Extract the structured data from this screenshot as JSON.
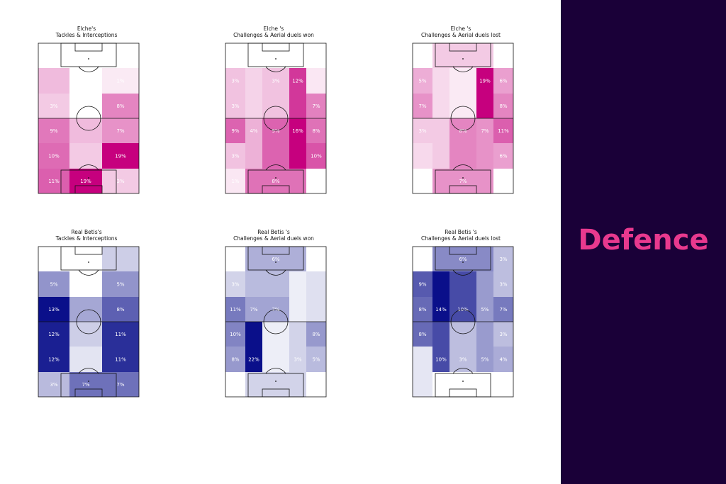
{
  "side_title": "Defence",
  "colors": {
    "elche": "#c6007e",
    "betis": "#0a0f8a",
    "right_bg": "#1a0038",
    "title": "#e8398e"
  },
  "chart_data": [
    {
      "type": "heatmap",
      "team": "Elche",
      "title": [
        "Elche's",
        "Tackles & Interceptions"
      ],
      "color": "#c6007e",
      "columns": 3,
      "rows": 6,
      "cells": [
        {
          "col": 0,
          "row": 0,
          "value": 0,
          "label": "0%"
        },
        {
          "col": 1,
          "row": 0,
          "value": 0,
          "label": "0%"
        },
        {
          "col": 2,
          "row": 0,
          "value": 0,
          "label": "0%"
        },
        {
          "col": 0,
          "row": 1,
          "value": 4,
          "label": ""
        },
        {
          "col": 1,
          "row": 1,
          "value": 0,
          "label": "0%"
        },
        {
          "col": 2,
          "row": 1,
          "value": 1,
          "label": "1%"
        },
        {
          "col": 0,
          "row": 2,
          "value": 3,
          "label": "3%"
        },
        {
          "col": 1,
          "row": 2,
          "value": 0,
          "label": ""
        },
        {
          "col": 2,
          "row": 2,
          "value": 8,
          "label": "8%"
        },
        {
          "col": 0,
          "row": 3,
          "value": 9,
          "label": "9%"
        },
        {
          "col": 1,
          "row": 3,
          "value": 4,
          "label": ""
        },
        {
          "col": 2,
          "row": 3,
          "value": 7,
          "label": "7%"
        },
        {
          "col": 0,
          "row": 4,
          "value": 10,
          "label": "10%"
        },
        {
          "col": 1,
          "row": 4,
          "value": 3,
          "label": ""
        },
        {
          "col": 2,
          "row": 4,
          "value": 19,
          "label": "19%"
        },
        {
          "col": 0,
          "row": 5,
          "value": 11,
          "label": "11%"
        },
        {
          "col": 1,
          "row": 5,
          "value": 19,
          "label": "19%"
        },
        {
          "col": 2,
          "row": 5,
          "value": 3,
          "label": "3%"
        }
      ]
    },
    {
      "type": "heatmap",
      "team": "Elche",
      "title": [
        "Elche 's",
        "Challenges & Aerial duels won"
      ],
      "color": "#c6007e",
      "columns": 5,
      "rows": 6,
      "cells": [
        {
          "col": 0,
          "row": 0,
          "value": 0,
          "label": "0%"
        },
        {
          "col": 1,
          "row": 0,
          "value": 0,
          "label": ""
        },
        {
          "col": 2,
          "row": 0,
          "value": 0,
          "label": ""
        },
        {
          "col": 3,
          "row": 0,
          "value": 0,
          "label": ""
        },
        {
          "col": 4,
          "row": 0,
          "value": 0,
          "label": "0%"
        },
        {
          "col": 0,
          "row": 1,
          "value": 3,
          "label": "3%"
        },
        {
          "col": 1,
          "row": 1,
          "value": 2,
          "label": ""
        },
        {
          "col": 2,
          "row": 1,
          "value": 3,
          "label": "3%"
        },
        {
          "col": 3,
          "row": 1,
          "value": 12,
          "label": "12%"
        },
        {
          "col": 4,
          "row": 1,
          "value": 1,
          "label": ""
        },
        {
          "col": 0,
          "row": 2,
          "value": 3,
          "label": "3%"
        },
        {
          "col": 1,
          "row": 2,
          "value": 2,
          "label": ""
        },
        {
          "col": 2,
          "row": 2,
          "value": 3,
          "label": ""
        },
        {
          "col": 3,
          "row": 2,
          "value": 12,
          "label": ""
        },
        {
          "col": 4,
          "row": 2,
          "value": 7,
          "label": "7%"
        },
        {
          "col": 0,
          "row": 3,
          "value": 9,
          "label": "9%"
        },
        {
          "col": 1,
          "row": 3,
          "value": 4,
          "label": "4%"
        },
        {
          "col": 2,
          "row": 3,
          "value": 9,
          "label": "9%"
        },
        {
          "col": 3,
          "row": 3,
          "value": 16,
          "label": "16%"
        },
        {
          "col": 4,
          "row": 3,
          "value": 8,
          "label": "8%"
        },
        {
          "col": 0,
          "row": 4,
          "value": 3,
          "label": "3%"
        },
        {
          "col": 1,
          "row": 4,
          "value": 4,
          "label": ""
        },
        {
          "col": 2,
          "row": 4,
          "value": 9,
          "label": ""
        },
        {
          "col": 3,
          "row": 4,
          "value": 16,
          "label": ""
        },
        {
          "col": 4,
          "row": 4,
          "value": 10,
          "label": "10%"
        },
        {
          "col": 0,
          "row": 5,
          "value": 1,
          "label": "1%"
        },
        {
          "col": 1,
          "row": 5,
          "value": 8,
          "label": ""
        },
        {
          "col": 2,
          "row": 5,
          "value": 8,
          "label": "8%"
        },
        {
          "col": 3,
          "row": 5,
          "value": 8,
          "label": ""
        },
        {
          "col": 4,
          "row": 5,
          "value": 0,
          "label": "0%"
        }
      ]
    },
    {
      "type": "heatmap",
      "team": "Elche",
      "title": [
        "Elche 's",
        "Challenges & Aerial duels lost"
      ],
      "color": "#c6007e",
      "columns": 5,
      "rows": 6,
      "cells": [
        {
          "col": 0,
          "row": 0,
          "value": 0,
          "label": "0%"
        },
        {
          "col": 1,
          "row": 0,
          "value": 3,
          "label": ""
        },
        {
          "col": 2,
          "row": 0,
          "value": 3,
          "label": ""
        },
        {
          "col": 3,
          "row": 0,
          "value": 3,
          "label": ""
        },
        {
          "col": 4,
          "row": 0,
          "value": 0,
          "label": "0%"
        },
        {
          "col": 0,
          "row": 1,
          "value": 5,
          "label": "5%"
        },
        {
          "col": 1,
          "row": 1,
          "value": 2,
          "label": ""
        },
        {
          "col": 2,
          "row": 1,
          "value": 1,
          "label": ""
        },
        {
          "col": 3,
          "row": 1,
          "value": 19,
          "label": "19%"
        },
        {
          "col": 4,
          "row": 1,
          "value": 6,
          "label": "6%"
        },
        {
          "col": 0,
          "row": 2,
          "value": 7,
          "label": "7%"
        },
        {
          "col": 1,
          "row": 2,
          "value": 2,
          "label": ""
        },
        {
          "col": 2,
          "row": 2,
          "value": 1,
          "label": ""
        },
        {
          "col": 3,
          "row": 2,
          "value": 19,
          "label": ""
        },
        {
          "col": 4,
          "row": 2,
          "value": 8,
          "label": "8%"
        },
        {
          "col": 0,
          "row": 3,
          "value": 3,
          "label": "3%"
        },
        {
          "col": 1,
          "row": 3,
          "value": 3,
          "label": ""
        },
        {
          "col": 2,
          "row": 3,
          "value": 8,
          "label": "8%"
        },
        {
          "col": 3,
          "row": 3,
          "value": 7,
          "label": "7%"
        },
        {
          "col": 4,
          "row": 3,
          "value": 11,
          "label": "11%"
        },
        {
          "col": 0,
          "row": 4,
          "value": 2,
          "label": ""
        },
        {
          "col": 1,
          "row": 4,
          "value": 3,
          "label": ""
        },
        {
          "col": 2,
          "row": 4,
          "value": 8,
          "label": ""
        },
        {
          "col": 3,
          "row": 4,
          "value": 7,
          "label": ""
        },
        {
          "col": 4,
          "row": 4,
          "value": 6,
          "label": "6%"
        },
        {
          "col": 0,
          "row": 5,
          "value": 0,
          "label": ""
        },
        {
          "col": 1,
          "row": 5,
          "value": 7,
          "label": ""
        },
        {
          "col": 2,
          "row": 5,
          "value": 7,
          "label": "7%"
        },
        {
          "col": 3,
          "row": 5,
          "value": 7,
          "label": ""
        },
        {
          "col": 4,
          "row": 5,
          "value": 0,
          "label": "0%"
        }
      ]
    },
    {
      "type": "heatmap",
      "team": "Real Betis",
      "title": [
        "Real Betis's",
        "Tackles & Interceptions"
      ],
      "color": "#0a0f8a",
      "columns": 3,
      "rows": 6,
      "cells": [
        {
          "col": 0,
          "row": 0,
          "value": 0,
          "label": "0%"
        },
        {
          "col": 1,
          "row": 0,
          "value": 0,
          "label": "0%"
        },
        {
          "col": 2,
          "row": 0,
          "value": 2,
          "label": ""
        },
        {
          "col": 0,
          "row": 1,
          "value": 5,
          "label": "5%"
        },
        {
          "col": 1,
          "row": 1,
          "value": 0,
          "label": "0%"
        },
        {
          "col": 2,
          "row": 1,
          "value": 5,
          "label": "5%"
        },
        {
          "col": 0,
          "row": 2,
          "value": 13,
          "label": "13%"
        },
        {
          "col": 1,
          "row": 2,
          "value": 4,
          "label": ""
        },
        {
          "col": 2,
          "row": 2,
          "value": 8,
          "label": "8%"
        },
        {
          "col": 0,
          "row": 3,
          "value": 12,
          "label": "12%"
        },
        {
          "col": 1,
          "row": 3,
          "value": 2,
          "label": ""
        },
        {
          "col": 2,
          "row": 3,
          "value": 11,
          "label": "11%"
        },
        {
          "col": 0,
          "row": 4,
          "value": 12,
          "label": "12%"
        },
        {
          "col": 1,
          "row": 4,
          "value": 1,
          "label": ""
        },
        {
          "col": 2,
          "row": 4,
          "value": 11,
          "label": "11%"
        },
        {
          "col": 0,
          "row": 5,
          "value": 3,
          "label": "3%"
        },
        {
          "col": 1,
          "row": 5,
          "value": 7,
          "label": "7%"
        },
        {
          "col": 2,
          "row": 5,
          "value": 7,
          "label": "7%"
        }
      ]
    },
    {
      "type": "heatmap",
      "team": "Real Betis",
      "title": [
        "Real Betis 's",
        "Challenges & Aerial duels won"
      ],
      "color": "#0a0f8a",
      "columns": 5,
      "rows": 6,
      "cells": [
        {
          "col": 0,
          "row": 0,
          "value": 0,
          "label": "0%"
        },
        {
          "col": 1,
          "row": 0,
          "value": 6,
          "label": ""
        },
        {
          "col": 2,
          "row": 0,
          "value": 6,
          "label": "6%"
        },
        {
          "col": 3,
          "row": 0,
          "value": 6,
          "label": ""
        },
        {
          "col": 4,
          "row": 0,
          "value": 0,
          "label": "0%"
        },
        {
          "col": 0,
          "row": 1,
          "value": 3,
          "label": "3%"
        },
        {
          "col": 1,
          "row": 1,
          "value": 5,
          "label": ""
        },
        {
          "col": 2,
          "row": 1,
          "value": 5,
          "label": ""
        },
        {
          "col": 3,
          "row": 1,
          "value": 1,
          "label": ""
        },
        {
          "col": 4,
          "row": 1,
          "value": 2,
          "label": ""
        },
        {
          "col": 0,
          "row": 2,
          "value": 11,
          "label": "11%"
        },
        {
          "col": 1,
          "row": 2,
          "value": 7,
          "label": "7%"
        },
        {
          "col": 2,
          "row": 2,
          "value": 7,
          "label": "7%"
        },
        {
          "col": 3,
          "row": 2,
          "value": 1,
          "label": ""
        },
        {
          "col": 4,
          "row": 2,
          "value": 2,
          "label": ""
        },
        {
          "col": 0,
          "row": 3,
          "value": 10,
          "label": "10%"
        },
        {
          "col": 1,
          "row": 3,
          "value": 22,
          "label": ""
        },
        {
          "col": 2,
          "row": 3,
          "value": 1,
          "label": ""
        },
        {
          "col": 3,
          "row": 3,
          "value": 3,
          "label": ""
        },
        {
          "col": 4,
          "row": 3,
          "value": 8,
          "label": "8%"
        },
        {
          "col": 0,
          "row": 4,
          "value": 8,
          "label": "8%"
        },
        {
          "col": 1,
          "row": 4,
          "value": 22,
          "label": "22%"
        },
        {
          "col": 2,
          "row": 4,
          "value": 1,
          "label": ""
        },
        {
          "col": 3,
          "row": 4,
          "value": 3,
          "label": "3%"
        },
        {
          "col": 4,
          "row": 4,
          "value": 5,
          "label": "5%"
        },
        {
          "col": 0,
          "row": 5,
          "value": 0,
          "label": "0%"
        },
        {
          "col": 1,
          "row": 5,
          "value": 3,
          "label": ""
        },
        {
          "col": 2,
          "row": 5,
          "value": 3,
          "label": ""
        },
        {
          "col": 3,
          "row": 5,
          "value": 3,
          "label": ""
        },
        {
          "col": 4,
          "row": 5,
          "value": 0,
          "label": ""
        }
      ]
    },
    {
      "type": "heatmap",
      "team": "Real Betis",
      "title": [
        "Real Betis 's",
        "Challenges & Aerial duels lost"
      ],
      "color": "#0a0f8a",
      "columns": 5,
      "rows": 6,
      "cells": [
        {
          "col": 0,
          "row": 0,
          "value": 0,
          "label": "0%"
        },
        {
          "col": 1,
          "row": 0,
          "value": 6,
          "label": ""
        },
        {
          "col": 2,
          "row": 0,
          "value": 6,
          "label": "6%"
        },
        {
          "col": 3,
          "row": 0,
          "value": 6,
          "label": ""
        },
        {
          "col": 4,
          "row": 0,
          "value": 3,
          "label": "3%"
        },
        {
          "col": 0,
          "row": 1,
          "value": 9,
          "label": "9%"
        },
        {
          "col": 1,
          "row": 1,
          "value": 14,
          "label": ""
        },
        {
          "col": 2,
          "row": 1,
          "value": 10,
          "label": ""
        },
        {
          "col": 3,
          "row": 1,
          "value": 5,
          "label": ""
        },
        {
          "col": 4,
          "row": 1,
          "value": 3,
          "label": "3%"
        },
        {
          "col": 0,
          "row": 2,
          "value": 8,
          "label": "8%"
        },
        {
          "col": 1,
          "row": 2,
          "value": 14,
          "label": "14%"
        },
        {
          "col": 2,
          "row": 2,
          "value": 10,
          "label": "10%"
        },
        {
          "col": 3,
          "row": 2,
          "value": 5,
          "label": "5%"
        },
        {
          "col": 4,
          "row": 2,
          "value": 7,
          "label": "7%"
        },
        {
          "col": 0,
          "row": 3,
          "value": 8,
          "label": "8%"
        },
        {
          "col": 1,
          "row": 3,
          "value": 10,
          "label": ""
        },
        {
          "col": 2,
          "row": 3,
          "value": 3,
          "label": ""
        },
        {
          "col": 3,
          "row": 3,
          "value": 5,
          "label": ""
        },
        {
          "col": 4,
          "row": 3,
          "value": 3,
          "label": "3%"
        },
        {
          "col": 0,
          "row": 4,
          "value": 1,
          "label": ""
        },
        {
          "col": 1,
          "row": 4,
          "value": 10,
          "label": "10%"
        },
        {
          "col": 2,
          "row": 4,
          "value": 3,
          "label": "3%"
        },
        {
          "col": 3,
          "row": 4,
          "value": 5,
          "label": "5%"
        },
        {
          "col": 4,
          "row": 4,
          "value": 4,
          "label": "4%"
        },
        {
          "col": 0,
          "row": 5,
          "value": 1,
          "label": ""
        },
        {
          "col": 1,
          "row": 5,
          "value": 0,
          "label": ""
        },
        {
          "col": 2,
          "row": 5,
          "value": 0,
          "label": ""
        },
        {
          "col": 3,
          "row": 5,
          "value": 0,
          "label": ""
        },
        {
          "col": 4,
          "row": 5,
          "value": 0,
          "label": ""
        }
      ]
    }
  ]
}
